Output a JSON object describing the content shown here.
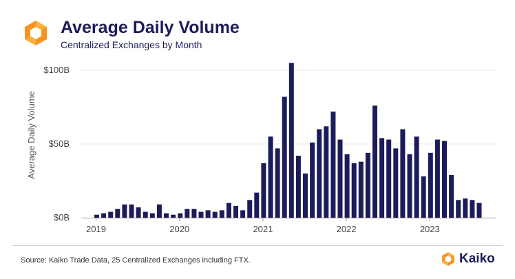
{
  "header": {
    "title": "Average Daily Volume",
    "subtitle": "Centralized Exchanges by Month"
  },
  "footer": {
    "source": "Source: Kaiko Trade Data, 25 Centralized Exchanges including FTX.",
    "brand": "Kaiko"
  },
  "colors": {
    "bar": "#1c1c5a",
    "logo_orange": "#f7931e",
    "logo_yellow": "#fbb03b",
    "grid": "#e8e8e8"
  },
  "chart_data": {
    "type": "bar",
    "title": "Average Daily Volume",
    "subtitle": "Centralized Exchanges by Month",
    "xlabel": "",
    "ylabel": "Average Daily Volume",
    "ylim": [
      0,
      100
    ],
    "y_ticks": [
      {
        "value": 0,
        "label": "$0B"
      },
      {
        "value": 50,
        "label": "$50B"
      },
      {
        "value": 100,
        "label": "$100B"
      }
    ],
    "x_ticks": [
      {
        "index": 0,
        "label": "2019"
      },
      {
        "index": 12,
        "label": "2020"
      },
      {
        "index": 24,
        "label": "2021"
      },
      {
        "index": 36,
        "label": "2022"
      },
      {
        "index": 48,
        "label": "2023"
      }
    ],
    "grid": true,
    "categories": [
      "Jan 2019",
      "Feb 2019",
      "Mar 2019",
      "Apr 2019",
      "May 2019",
      "Jun 2019",
      "Jul 2019",
      "Aug 2019",
      "Sep 2019",
      "Oct 2019",
      "Nov 2019",
      "Dec 2019",
      "Jan 2020",
      "Feb 2020",
      "Mar 2020",
      "Apr 2020",
      "May 2020",
      "Jun 2020",
      "Jul 2020",
      "Aug 2020",
      "Sep 2020",
      "Oct 2020",
      "Nov 2020",
      "Dec 2020",
      "Jan 2021",
      "Feb 2021",
      "Mar 2021",
      "Apr 2021",
      "May 2021",
      "Jun 2021",
      "Jul 2021",
      "Aug 2021",
      "Sep 2021",
      "Oct 2021",
      "Nov 2021",
      "Dec 2021",
      "Jan 2022",
      "Feb 2022",
      "Mar 2022",
      "Apr 2022",
      "May 2022",
      "Jun 2022",
      "Jul 2022",
      "Aug 2022",
      "Sep 2022",
      "Oct 2022",
      "Nov 2022",
      "Dec 2022",
      "Jan 2023",
      "Feb 2023",
      "Mar 2023",
      "Apr 2023",
      "May 2023",
      "Jun 2023",
      "Jul 2023",
      "Aug 2023"
    ],
    "values": [
      2,
      3,
      4,
      6,
      9,
      9,
      7,
      4,
      3,
      9,
      3,
      2,
      3,
      6,
      6,
      4,
      5,
      4,
      5,
      10,
      8,
      5,
      12,
      17,
      37,
      55,
      47,
      82,
      105,
      42,
      30,
      51,
      60,
      62,
      72,
      53,
      43,
      37,
      38,
      44,
      76,
      54,
      53,
      47,
      60,
      43,
      55,
      28,
      44,
      53,
      52,
      29,
      12,
      13,
      12,
      10
    ]
  }
}
